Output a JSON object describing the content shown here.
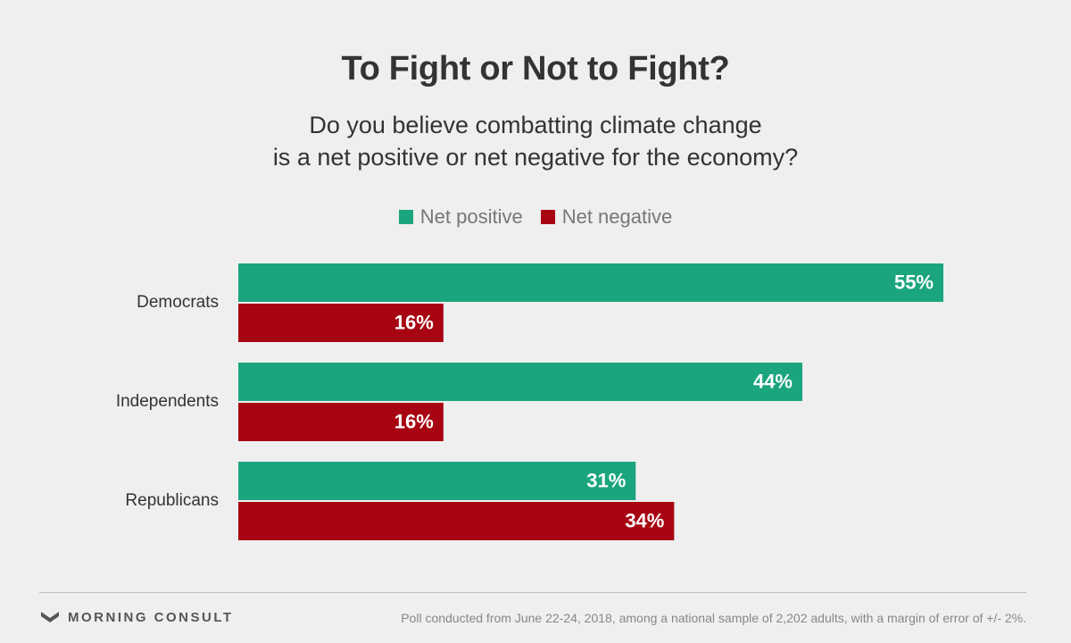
{
  "brand": "MORNING CONSULT",
  "footnote": "Poll conducted from June 22-24, 2018, among a national sample of 2,202 adults, with a margin of error of +/- 2%.",
  "colors": {
    "net_positive": "#1ba57f",
    "net_negative": "#a80512",
    "background": "#efefef"
  },
  "chart_data": {
    "type": "bar",
    "orientation": "horizontal",
    "title": "To Fight or Not to Fight?",
    "subtitle_lines": [
      "Do you believe combatting climate change",
      "is a net positive or net negative for the economy?"
    ],
    "categories": [
      "Democrats",
      "Independents",
      "Republicans"
    ],
    "series": [
      {
        "name": "Net positive",
        "values": [
          55,
          44,
          31
        ],
        "labels": [
          "55%",
          "44%",
          "31%"
        ],
        "color": "#1ba57f"
      },
      {
        "name": "Net negative",
        "values": [
          16,
          16,
          34
        ],
        "labels": [
          "16%",
          "16%",
          "34%"
        ],
        "color": "#a80512"
      }
    ],
    "xlim": [
      0,
      55
    ],
    "legend_position": "top-center",
    "grid": false
  }
}
